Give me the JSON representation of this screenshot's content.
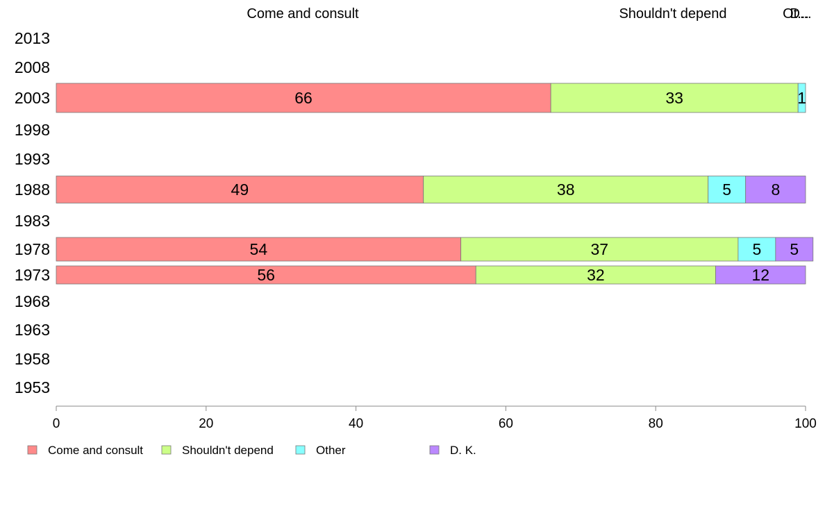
{
  "chart_data": {
    "type": "bar",
    "orientation": "horizontal",
    "stacked": true,
    "categories": [
      "2013",
      "2008",
      "2003",
      "1998",
      "1993",
      "1988",
      "1983",
      "1978",
      "1973",
      "1968",
      "1963",
      "1958",
      "1953"
    ],
    "series": [
      {
        "name": "Come and consult",
        "color": "#FF8A8A",
        "values": [
          null,
          null,
          66,
          null,
          null,
          49,
          null,
          54,
          56,
          null,
          null,
          null,
          null
        ]
      },
      {
        "name": "Shouldn't depend",
        "color": "#CCFF88",
        "values": [
          null,
          null,
          33,
          null,
          null,
          38,
          null,
          37,
          32,
          null,
          null,
          null,
          null
        ]
      },
      {
        "name": "Other",
        "color": "#88FFFF",
        "values": [
          null,
          null,
          1,
          null,
          null,
          5,
          null,
          5,
          null,
          null,
          null,
          null,
          null
        ]
      },
      {
        "name": "D. K.",
        "color": "#BB88FF",
        "values": [
          null,
          null,
          null,
          null,
          null,
          8,
          null,
          5,
          12,
          null,
          null,
          null,
          null
        ]
      }
    ],
    "top_labels": [
      "Come and consult",
      "Shouldn't depend",
      "Ot...",
      "D..."
    ],
    "xlim": [
      0,
      100
    ],
    "xticks": [
      "0",
      "20",
      "40",
      "60",
      "80",
      "100"
    ],
    "grid": false,
    "legend_position": "bottom-left"
  }
}
